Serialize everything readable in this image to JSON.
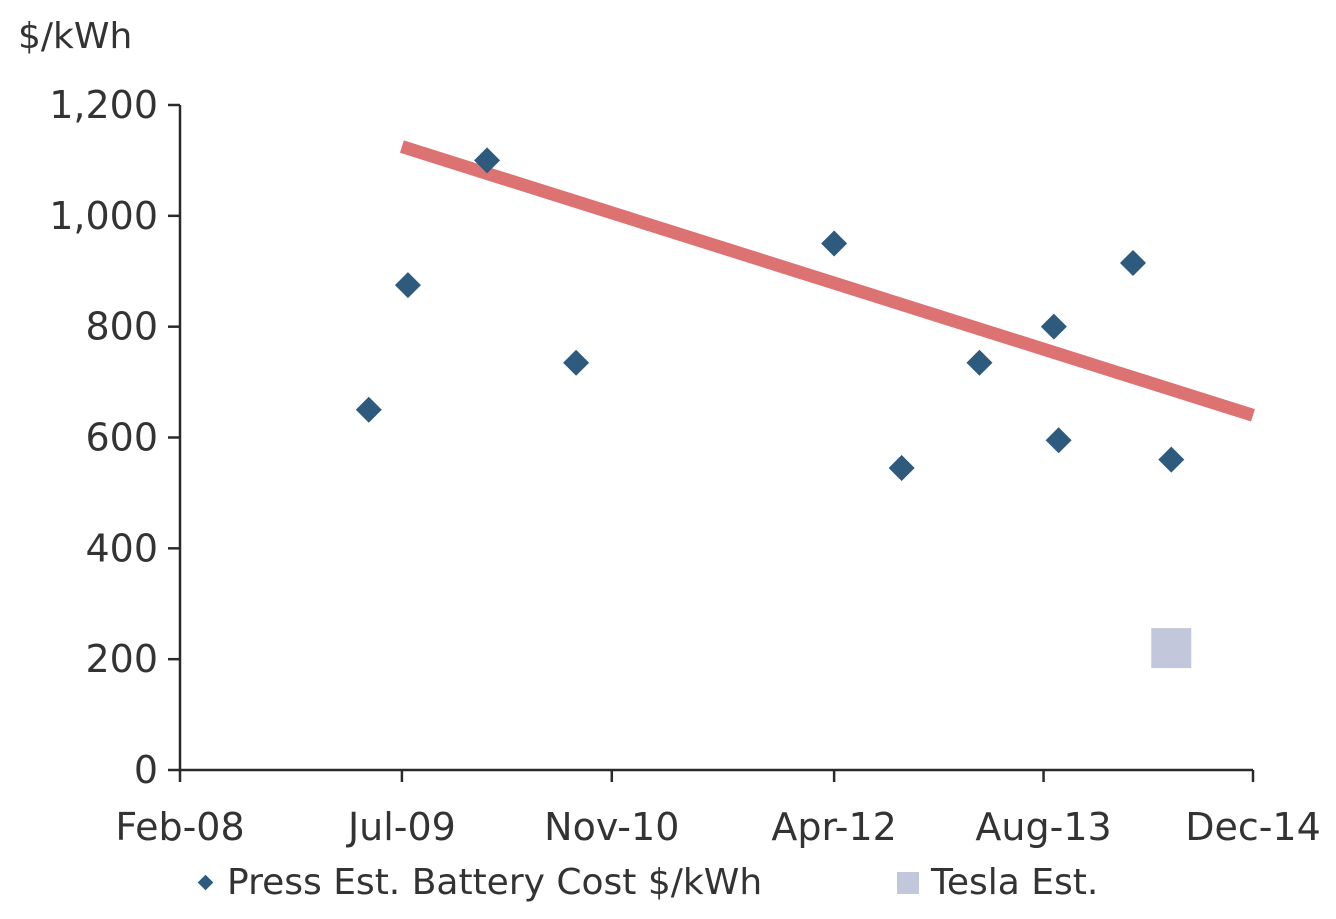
{
  "chart_data": {
    "type": "scatter",
    "ylabel": "$/kWh",
    "ylim": [
      0,
      1200
    ],
    "yticks": [
      0,
      200,
      400,
      600,
      800,
      1000,
      1200
    ],
    "ytick_labels": [
      "0",
      "200",
      "400",
      "600",
      "800",
      "1,000",
      "1,200"
    ],
    "xlim": [
      "2008-02-01",
      "2014-12-01"
    ],
    "xticks": [
      "2008-02-01",
      "2009-07-01",
      "2010-11-01",
      "2012-04-01",
      "2013-08-01",
      "2014-12-01"
    ],
    "xtick_labels": [
      "Feb-08",
      "Jul-09",
      "Nov-10",
      "Apr-12",
      "Aug-13",
      "Dec-14"
    ],
    "grid": false,
    "legend_position": "bottom",
    "series": [
      {
        "name": "Press Est. Battery Cost $/kWh",
        "marker": "diamond",
        "color": "#2e5a7e",
        "points": [
          {
            "x": "2009-04-15",
            "y": 650
          },
          {
            "x": "2009-07-15",
            "y": 875
          },
          {
            "x": "2010-01-15",
            "y": 1100
          },
          {
            "x": "2010-08-10",
            "y": 735
          },
          {
            "x": "2012-04-01",
            "y": 950
          },
          {
            "x": "2012-09-05",
            "y": 545
          },
          {
            "x": "2013-03-05",
            "y": 735
          },
          {
            "x": "2013-08-25",
            "y": 800
          },
          {
            "x": "2013-09-05",
            "y": 595
          },
          {
            "x": "2014-02-25",
            "y": 915
          },
          {
            "x": "2014-05-25",
            "y": 560
          }
        ]
      },
      {
        "name": "Tesla Est.",
        "marker": "square",
        "color": "#c3c7dc",
        "points": [
          {
            "x": "2014-05-25",
            "y": 220
          }
        ]
      }
    ],
    "trendline": {
      "color": "#dc7272",
      "points": [
        {
          "x": "2009-07-01",
          "y": 1125
        },
        {
          "x": "2014-12-01",
          "y": 640
        }
      ]
    }
  }
}
